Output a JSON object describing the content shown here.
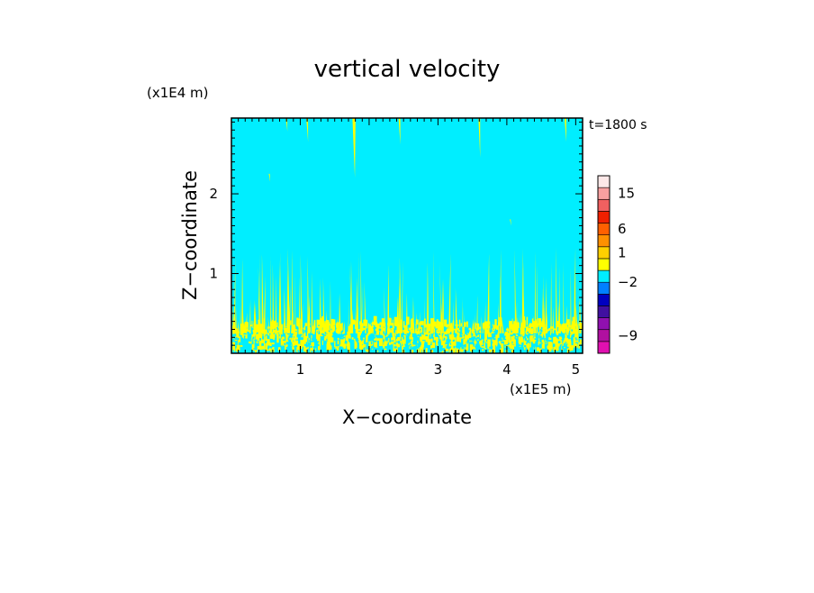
{
  "chart_data": {
    "type": "heatmap",
    "title": "vertical velocity",
    "time_label": "t=1800 s",
    "xlabel": "X−coordinate",
    "ylabel": "Z−coordinate",
    "x_scale_label": "(x1E5 m)",
    "y_scale_label": "(x1E4 m)",
    "xlim": [
      0,
      5.1
    ],
    "ylim": [
      0,
      2.95
    ],
    "xticks": [
      {
        "value": 1,
        "label": "1"
      },
      {
        "value": 2,
        "label": "2"
      },
      {
        "value": 3,
        "label": "3"
      },
      {
        "value": 4,
        "label": "4"
      },
      {
        "value": 5,
        "label": "5"
      }
    ],
    "yticks": [
      {
        "value": 1,
        "label": "1"
      },
      {
        "value": 2,
        "label": "2"
      }
    ],
    "background_color": "#00eeff",
    "updraft_color": "#ffff00",
    "colorbar": {
      "bands": [
        {
          "color": "#e010b0"
        },
        {
          "color": "#b010a0"
        },
        {
          "color": "#9010b0"
        },
        {
          "color": "#4010a0"
        },
        {
          "color": "#0000c0"
        },
        {
          "color": "#0080ff"
        },
        {
          "color": "#00eeff"
        },
        {
          "color": "#ffff00"
        },
        {
          "color": "#ffd000"
        },
        {
          "color": "#ff9000"
        },
        {
          "color": "#ff6000"
        },
        {
          "color": "#f02000"
        },
        {
          "color": "#f06060"
        },
        {
          "color": "#f8a0a0"
        },
        {
          "color": "#fde8e8"
        }
      ],
      "labels": [
        {
          "text": "15",
          "band": 13
        },
        {
          "text": "6",
          "band": 10
        },
        {
          "text": "1",
          "band": 8
        },
        {
          "text": "−2",
          "band": 5.5
        },
        {
          "text": "−9",
          "band": 1
        }
      ]
    },
    "plumes": [
      {
        "x": 0.8,
        "z0": 2.78,
        "z1": 2.95,
        "w": 0.02
      },
      {
        "x": 1.1,
        "z0": 2.65,
        "z1": 2.95,
        "w": 0.025
      },
      {
        "x": 1.78,
        "z0": 2.2,
        "z1": 2.95,
        "w": 0.045
      },
      {
        "x": 2.44,
        "z0": 2.62,
        "z1": 2.95,
        "w": 0.025
      },
      {
        "x": 3.6,
        "z0": 2.45,
        "z1": 2.95,
        "w": 0.025
      },
      {
        "x": 4.85,
        "z0": 2.65,
        "z1": 2.95,
        "w": 0.025
      },
      {
        "x": 0.55,
        "z0": 2.15,
        "z1": 2.25,
        "w": 0.015
      },
      {
        "x": 4.05,
        "z0": 1.6,
        "z1": 1.68,
        "w": 0.012
      }
    ]
  }
}
